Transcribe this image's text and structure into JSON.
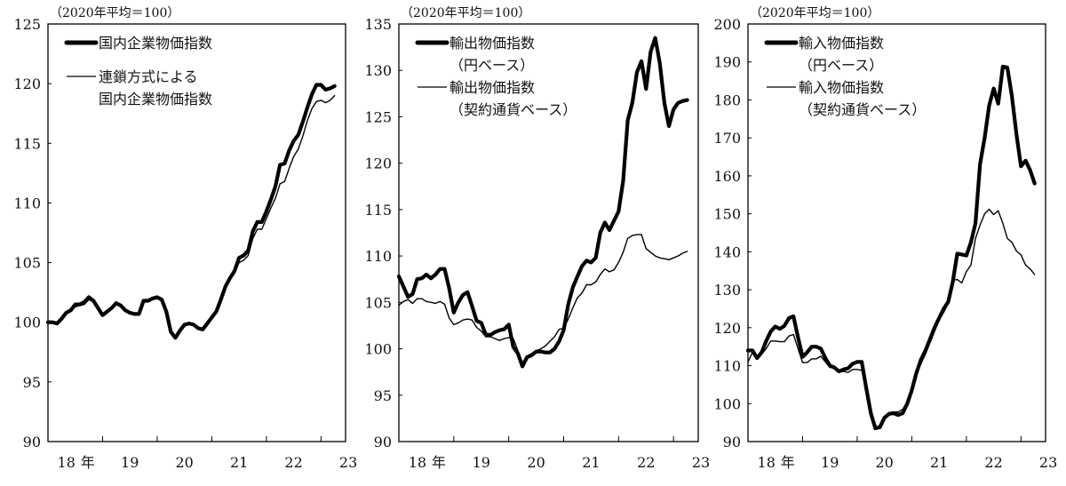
{
  "chart_data": [
    {
      "type": "line",
      "unit_note": "（2020年平均＝100）",
      "ylim": [
        90,
        125
      ],
      "yticks": [
        90,
        95,
        100,
        105,
        110,
        115,
        120,
        125
      ],
      "x_start": "2018-01",
      "x_frequency": "monthly",
      "xtick_labels": [
        "18",
        "年",
        "19",
        "20",
        "21",
        "22",
        "23"
      ],
      "legend_position": "top-left",
      "series": [
        {
          "name": "国内企業物価指数",
          "legend_lines": [
            "国内企業物価指数"
          ],
          "style": "thick",
          "values": [
            100.0,
            100.0,
            99.9,
            100.3,
            100.8,
            101.0,
            101.5,
            101.5,
            101.7,
            102.1,
            101.8,
            101.2,
            100.6,
            100.9,
            101.2,
            101.6,
            101.4,
            101.0,
            100.8,
            100.7,
            100.7,
            101.8,
            101.8,
            102.0,
            102.1,
            101.9,
            100.9,
            99.2,
            98.7,
            99.3,
            99.8,
            99.9,
            99.8,
            99.5,
            99.4,
            99.9,
            100.4,
            100.9,
            101.9,
            103.0,
            103.7,
            104.3,
            105.4,
            105.6,
            106.0,
            107.6,
            108.4,
            108.4,
            109.3,
            110.3,
            111.4,
            113.2,
            113.3,
            114.4,
            115.2,
            115.7,
            116.8,
            118.0,
            119.1,
            119.9,
            119.9,
            119.5,
            119.6,
            119.8
          ]
        },
        {
          "name": "連鎖方式による国内企業物価指数",
          "legend_lines": [
            "連鎖方式による",
            "国内企業物価指数"
          ],
          "style": "thin",
          "values": [
            100.0,
            100.0,
            99.9,
            100.3,
            100.7,
            100.9,
            101.3,
            101.4,
            101.5,
            101.9,
            101.7,
            101.1,
            100.6,
            100.9,
            101.1,
            101.5,
            101.3,
            100.9,
            100.8,
            100.6,
            100.6,
            101.7,
            101.8,
            101.9,
            102.0,
            101.8,
            100.8,
            99.2,
            98.7,
            99.3,
            99.8,
            99.9,
            99.8,
            99.5,
            99.4,
            99.9,
            100.4,
            100.8,
            101.8,
            102.9,
            103.6,
            104.1,
            105.0,
            105.2,
            105.6,
            107.0,
            107.8,
            107.8,
            108.7,
            109.6,
            110.4,
            111.6,
            111.8,
            112.9,
            113.9,
            114.5,
            115.6,
            116.9,
            117.9,
            118.5,
            118.6,
            118.4,
            118.6,
            119.0
          ]
        }
      ]
    },
    {
      "type": "line",
      "unit_note": "（2020年平均＝100）",
      "ylim": [
        90,
        135
      ],
      "yticks": [
        90,
        95,
        100,
        105,
        110,
        115,
        120,
        125,
        130,
        135
      ],
      "x_start": "2018-01",
      "x_frequency": "monthly",
      "xtick_labels": [
        "18",
        "年",
        "19",
        "20",
        "21",
        "22",
        "23"
      ],
      "legend_position": "top-left",
      "series": [
        {
          "name": "輸出物価指数（円ベース）",
          "legend_lines": [
            "輸出物価指数",
            "（円ベース）"
          ],
          "style": "thick",
          "values": [
            107.8,
            106.7,
            105.6,
            105.9,
            107.5,
            107.6,
            108.0,
            107.6,
            108.0,
            108.6,
            108.6,
            106.5,
            103.9,
            105.0,
            105.8,
            106.1,
            104.6,
            103.0,
            102.8,
            101.5,
            101.5,
            101.8,
            102.0,
            102.1,
            102.6,
            100.2,
            99.5,
            98.1,
            99.1,
            99.3,
            99.7,
            99.7,
            99.6,
            99.6,
            100.0,
            100.8,
            102.0,
            104.8,
            106.6,
            107.8,
            108.9,
            109.5,
            109.3,
            109.8,
            112.5,
            113.6,
            112.8,
            113.8,
            114.8,
            118.1,
            124.6,
            126.5,
            129.8,
            131.0,
            128.0,
            132.0,
            133.5,
            130.8,
            126.5,
            124.0,
            125.8,
            126.5,
            126.7,
            126.8
          ]
        },
        {
          "name": "輸出物価指数（契約通貨ベース）",
          "legend_lines": [
            "輸出物価指数",
            "（契約通貨ベース）"
          ],
          "style": "thin",
          "values": [
            104.7,
            105.1,
            105.3,
            104.9,
            105.4,
            105.4,
            105.1,
            105.0,
            104.9,
            105.1,
            104.8,
            103.3,
            102.6,
            102.8,
            103.1,
            103.2,
            103.1,
            102.3,
            101.9,
            101.3,
            101.3,
            101.1,
            100.9,
            101.1,
            101.2,
            101.1,
            99.8,
            98.5,
            99.2,
            99.5,
            99.8,
            100.0,
            100.3,
            100.8,
            101.3,
            102.1,
            102.2,
            103.2,
            104.4,
            105.5,
            106.0,
            106.9,
            106.9,
            107.2,
            108.0,
            108.6,
            108.3,
            108.5,
            109.3,
            110.4,
            111.9,
            112.2,
            112.3,
            112.3,
            110.8,
            110.4,
            110.0,
            109.8,
            109.7,
            109.6,
            109.8,
            110.0,
            110.3,
            110.5
          ]
        }
      ]
    },
    {
      "type": "line",
      "unit_note": "（2020年平均＝100）",
      "ylim": [
        90,
        200
      ],
      "yticks": [
        90,
        100,
        110,
        120,
        130,
        140,
        150,
        160,
        170,
        180,
        190,
        200
      ],
      "x_start": "2018-01",
      "x_frequency": "monthly",
      "xtick_labels": [
        "18",
        "年",
        "19",
        "20",
        "21",
        "22",
        "23"
      ],
      "legend_position": "top-left",
      "series": [
        {
          "name": "輸入物価指数（円ベース）",
          "legend_lines": [
            "輸入物価指数",
            "（円ベース）"
          ],
          "style": "thick",
          "values": [
            114.0,
            114.0,
            112.0,
            113.5,
            116.5,
            119.0,
            120.3,
            119.7,
            120.5,
            122.5,
            123.0,
            117.5,
            112.3,
            113.5,
            115.0,
            115.0,
            114.5,
            112.0,
            110.0,
            109.5,
            108.5,
            109.0,
            109.3,
            110.5,
            111.0,
            111.0,
            104.0,
            97.5,
            93.5,
            93.8,
            96.3,
            97.3,
            97.5,
            97.0,
            97.5,
            100.0,
            103.5,
            108.0,
            111.5,
            114.0,
            117.0,
            120.0,
            122.5,
            125.0,
            126.8,
            132.0,
            139.5,
            139.3,
            139.0,
            142.5,
            147.5,
            163.0,
            170.0,
            178.5,
            183.0,
            179.0,
            188.8,
            188.5,
            181.0,
            171.0,
            162.5,
            164.0,
            161.5,
            158.0
          ]
        },
        {
          "name": "輸入物価指数（契約通貨ベース）",
          "legend_lines": [
            "輸入物価指数",
            "（契約通貨ベース）"
          ],
          "style": "thin",
          "values": [
            111.0,
            113.5,
            112.0,
            113.0,
            114.5,
            116.5,
            116.5,
            116.3,
            116.3,
            117.8,
            118.2,
            114.5,
            110.8,
            110.8,
            111.8,
            111.8,
            112.5,
            111.0,
            109.5,
            109.5,
            108.3,
            108.5,
            108.2,
            109.0,
            109.0,
            108.8,
            103.0,
            97.5,
            93.5,
            93.8,
            96.5,
            97.6,
            97.8,
            97.8,
            98.5,
            100.5,
            103.0,
            107.5,
            110.5,
            113.0,
            116.0,
            119.0,
            122.0,
            124.0,
            126.5,
            132.5,
            132.7,
            131.8,
            134.8,
            136.5,
            143.5,
            147.0,
            150.0,
            151.2,
            149.8,
            150.8,
            147.5,
            143.5,
            142.5,
            140.2,
            139.2,
            136.5,
            135.5,
            134.0
          ]
        }
      ]
    }
  ]
}
